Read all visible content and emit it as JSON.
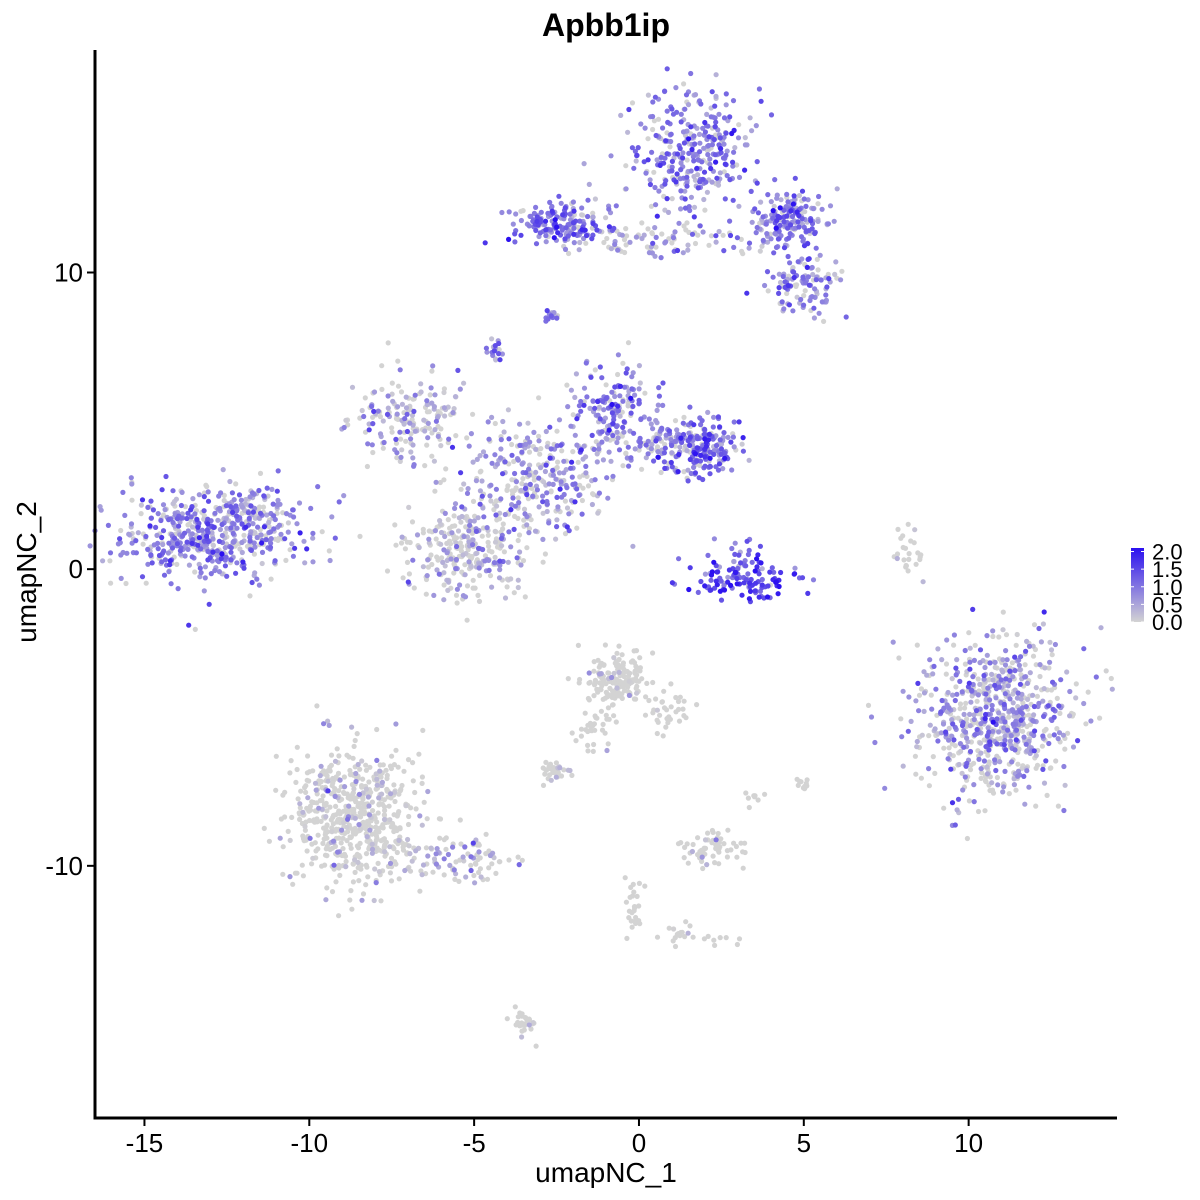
{
  "chart_data": {
    "type": "scatter",
    "title": "Apbb1ip",
    "xlabel": "umapNC_1",
    "ylabel": "umapNC_2",
    "xlim": [
      -16.5,
      14.5
    ],
    "ylim": [
      -18.5,
      17.5
    ],
    "x_ticks": [
      -15,
      -10,
      -5,
      0,
      5,
      10
    ],
    "x_tick_labels": [
      "-15",
      "-10",
      "-5",
      "0",
      "5",
      "10"
    ],
    "y_ticks": [
      10,
      0,
      -10
    ],
    "y_tick_labels": [
      "10",
      "0",
      "-10"
    ],
    "grid": false,
    "legend": {
      "placement": "right",
      "type": "colorbar",
      "min": 0.0,
      "max": 2.1,
      "breaks": [
        2.0,
        1.5,
        1.0,
        0.5,
        0.0
      ],
      "labels": [
        "2.0",
        "1.5",
        "1.0",
        "0.5",
        "0.0"
      ]
    },
    "color_low": "#d3d3d3",
    "color_high": "#2b10f0",
    "clusters": [
      {
        "name": "left-blob",
        "cx": -13.0,
        "cy": 1.2,
        "sx": 1.3,
        "sy": 0.8,
        "n": 520,
        "expr": 0.85
      },
      {
        "name": "left-blob-tail",
        "cx": -11.6,
        "cy": 2.0,
        "sx": 0.6,
        "sy": 0.5,
        "n": 60,
        "expr": 0.8
      },
      {
        "name": "center-star-core",
        "cx": -3.2,
        "cy": 3.0,
        "sx": 1.2,
        "sy": 1.0,
        "n": 300,
        "expr": 0.7
      },
      {
        "name": "center-star-upleft",
        "cx": -6.8,
        "cy": 5.0,
        "sx": 0.9,
        "sy": 0.7,
        "n": 180,
        "expr": 0.6
      },
      {
        "name": "center-star-lowleft",
        "cx": -5.3,
        "cy": 0.6,
        "sx": 1.0,
        "sy": 0.8,
        "n": 280,
        "expr": 0.45
      },
      {
        "name": "center-star-right",
        "cx": -0.8,
        "cy": 5.4,
        "sx": 0.7,
        "sy": 0.8,
        "n": 160,
        "expr": 0.85
      },
      {
        "name": "center-star-arm",
        "cx": 0.8,
        "cy": 4.2,
        "sx": 1.0,
        "sy": 0.4,
        "n": 120,
        "expr": 0.8
      },
      {
        "name": "center-star-end",
        "cx": 2.0,
        "cy": 4.0,
        "sx": 0.5,
        "sy": 0.5,
        "n": 150,
        "expr": 1.1
      },
      {
        "name": "top-peak",
        "cx": 1.5,
        "cy": 14.0,
        "sx": 0.9,
        "sy": 1.1,
        "n": 330,
        "expr": 0.9
      },
      {
        "name": "top-left-arm",
        "cx": -2.4,
        "cy": 11.6,
        "sx": 0.7,
        "sy": 0.4,
        "n": 170,
        "expr": 0.95
      },
      {
        "name": "top-right-arm",
        "cx": 4.5,
        "cy": 11.7,
        "sx": 0.6,
        "sy": 0.5,
        "n": 180,
        "expr": 0.95
      },
      {
        "name": "top-right-lower",
        "cx": 5.0,
        "cy": 9.6,
        "sx": 0.6,
        "sy": 0.5,
        "n": 110,
        "expr": 0.8
      },
      {
        "name": "top-bridge",
        "cx": 0.5,
        "cy": 11.1,
        "sx": 1.4,
        "sy": 0.3,
        "n": 80,
        "expr": 0.5
      },
      {
        "name": "top-small",
        "cx": -2.7,
        "cy": 8.5,
        "sx": 0.15,
        "sy": 0.15,
        "n": 12,
        "expr": 0.9
      },
      {
        "name": "star-top-spike",
        "cx": -4.4,
        "cy": 7.3,
        "sx": 0.15,
        "sy": 0.2,
        "n": 18,
        "expr": 0.9
      },
      {
        "name": "crescent",
        "cx": 3.2,
        "cy": -0.4,
        "sx": 0.8,
        "sy": 0.35,
        "n": 110,
        "expr": 1.5
      },
      {
        "name": "crescent-inner",
        "cx": 3.1,
        "cy": 0.3,
        "sx": 0.3,
        "sy": 0.4,
        "n": 25,
        "expr": 1.0
      },
      {
        "name": "right-blob",
        "cx": 10.8,
        "cy": -5.0,
        "sx": 1.2,
        "sy": 1.3,
        "n": 720,
        "expr": 0.65
      },
      {
        "name": "right-small-strand",
        "cx": 8.2,
        "cy": 0.5,
        "sx": 0.2,
        "sy": 0.5,
        "n": 25,
        "expr": 0.15
      },
      {
        "name": "bottom-left-blob",
        "cx": -8.6,
        "cy": -8.3,
        "sx": 1.0,
        "sy": 1.1,
        "n": 600,
        "expr": 0.15
      },
      {
        "name": "bottom-left-tail",
        "cx": -5.8,
        "cy": -9.8,
        "sx": 0.9,
        "sy": 0.35,
        "n": 90,
        "expr": 0.4
      },
      {
        "name": "mid-bottom-upper",
        "cx": -0.6,
        "cy": -3.8,
        "sx": 0.5,
        "sy": 0.5,
        "n": 160,
        "expr": 0.05
      },
      {
        "name": "mid-bottom-strand",
        "cx": -1.3,
        "cy": -5.5,
        "sx": 0.3,
        "sy": 0.5,
        "n": 30,
        "expr": 0.02
      },
      {
        "name": "mid-bottom-right",
        "cx": 0.9,
        "cy": -4.8,
        "sx": 0.3,
        "sy": 0.4,
        "n": 30,
        "expr": 0.02
      },
      {
        "name": "small-left-bottom",
        "cx": -2.6,
        "cy": -6.8,
        "sx": 0.3,
        "sy": 0.15,
        "n": 28,
        "expr": 0.15
      },
      {
        "name": "small-mid",
        "cx": 2.2,
        "cy": -9.4,
        "sx": 0.45,
        "sy": 0.3,
        "n": 60,
        "expr": 0.1
      },
      {
        "name": "small-lower-strand",
        "cx": -0.2,
        "cy": -11.2,
        "sx": 0.15,
        "sy": 0.6,
        "n": 25,
        "expr": 0.02
      },
      {
        "name": "small-lower-line",
        "cx": 1.7,
        "cy": -12.4,
        "sx": 0.6,
        "sy": 0.2,
        "n": 25,
        "expr": 0.02
      },
      {
        "name": "bottom-small",
        "cx": -3.5,
        "cy": -15.3,
        "sx": 0.2,
        "sy": 0.25,
        "n": 30,
        "expr": 0.05
      },
      {
        "name": "small-right-1",
        "cx": 5.0,
        "cy": -7.2,
        "sx": 0.1,
        "sy": 0.15,
        "n": 10,
        "expr": 0.05
      },
      {
        "name": "small-right-2",
        "cx": 3.4,
        "cy": -7.6,
        "sx": 0.2,
        "sy": 0.2,
        "n": 8,
        "expr": 0.02
      }
    ]
  }
}
